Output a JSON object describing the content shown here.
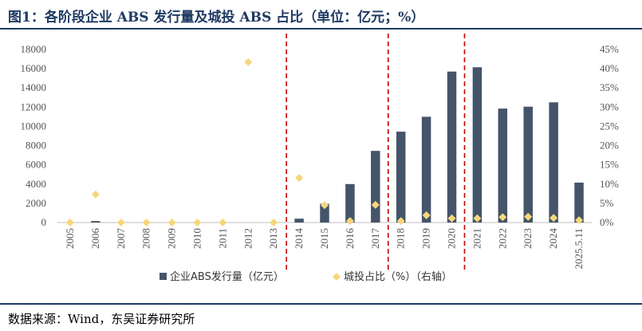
{
  "header": {
    "title": "图1：各阶段企业 ABS 发行量及城投 ABS 占比（单位：亿元；%）"
  },
  "footer": {
    "source": "数据来源：Wind，东吴证券研究所"
  },
  "colors": {
    "bar": "#44546a",
    "diamond": "#f5d77a",
    "divider": "#c00000",
    "rule": "#1f3a63"
  },
  "chart_data": {
    "type": "bar",
    "categories": [
      "2005",
      "2006",
      "2007",
      "2008",
      "2009",
      "2010",
      "2011",
      "2012",
      "2013",
      "2014",
      "2015",
      "2016",
      "2017",
      "2018",
      "2019",
      "2020",
      "2021",
      "2022",
      "2023",
      "2024",
      "2025.5.11"
    ],
    "series": [
      {
        "name": "企业ABS发行量（亿元）",
        "type": "bar",
        "axis": "left",
        "values": [
          0,
          150,
          0,
          0,
          0,
          0,
          0,
          0,
          0,
          400,
          1950,
          4000,
          7450,
          9450,
          11000,
          15700,
          16150,
          11850,
          12050,
          12500,
          4150
        ]
      },
      {
        "name": "城投占比（%）（右轴）",
        "type": "scatter",
        "axis": "right",
        "values": [
          0,
          7.3,
          0,
          0,
          0,
          0,
          0,
          41.7,
          0,
          11.6,
          4.5,
          0.4,
          4.6,
          0.4,
          1.9,
          1.1,
          1.1,
          1.4,
          1.5,
          1.2,
          0.6
        ]
      }
    ],
    "y_left": {
      "ylim": [
        0,
        18000
      ],
      "ticks": [
        "0",
        "2000",
        "4000",
        "6000",
        "8000",
        "10000",
        "12000",
        "14000",
        "16000",
        "18000"
      ]
    },
    "y_right": {
      "ylim": [
        0,
        45
      ],
      "ticks": [
        "0%",
        "5%",
        "10%",
        "15%",
        "20%",
        "25%",
        "30%",
        "35%",
        "40%",
        "45%"
      ]
    },
    "dividers_after": [
      "2013",
      "2017",
      "2020"
    ],
    "legend": {
      "placement": "bottom-center"
    }
  }
}
